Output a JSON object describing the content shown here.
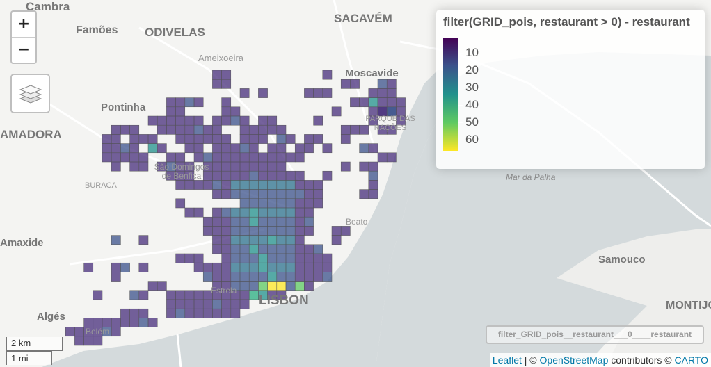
{
  "map": {
    "water_color": "#d4dadc",
    "land_color": "#f4f4f2",
    "cell_color_low": "#472d7b",
    "place_labels": [
      {
        "name": "Cambra",
        "size": "m"
      },
      {
        "name": "Famões",
        "size": "m"
      },
      {
        "name": "ODIVELAS",
        "size": "l"
      },
      {
        "name": "SACAVÉM",
        "size": "l"
      },
      {
        "name": "Ameixoeira",
        "size": "s"
      },
      {
        "name": "Moscavide",
        "size": "m"
      },
      {
        "name": "Pontinha",
        "size": "m"
      },
      {
        "name": "PARQUE DAS NAÇÕES",
        "size": "s"
      },
      {
        "name": "AMADORA",
        "size": "l"
      },
      {
        "name": "São Domingos de Benfica",
        "size": "s"
      },
      {
        "name": "BURACA",
        "size": "s"
      },
      {
        "name": "Mar da Palha",
        "size": "i"
      },
      {
        "name": "Beato",
        "size": "s"
      },
      {
        "name": "Amaxide",
        "size": "m"
      },
      {
        "name": "Samouco",
        "size": "m"
      },
      {
        "name": "Estrela",
        "size": "s"
      },
      {
        "name": "LISBON",
        "size": "l"
      },
      {
        "name": "Algés",
        "size": "m"
      },
      {
        "name": "Belém",
        "size": "s"
      },
      {
        "name": "MONTIJO",
        "size": "l"
      }
    ]
  },
  "controls": {
    "zoom_in": "+",
    "zoom_out": "−",
    "layers_icon": "layers-icon"
  },
  "legend": {
    "title": "filter(GRID_pois, restaurant > 0) - restaurant",
    "labels": [
      "10",
      "20",
      "30",
      "40",
      "50",
      "60"
    ],
    "palette": [
      "#440154",
      "#3b528b",
      "#21918c",
      "#5ec962",
      "#fde725"
    ]
  },
  "layer_id": "filter_GRID_pois__restaurant___0____restaurant",
  "scale": {
    "metric": "2 km",
    "imperial": "1 mi"
  },
  "attribution": {
    "leaflet": "Leaflet",
    "sep": " | © ",
    "osm": "OpenStreetMap",
    "contrib": " contributors © ",
    "carto": "CARTO"
  }
}
